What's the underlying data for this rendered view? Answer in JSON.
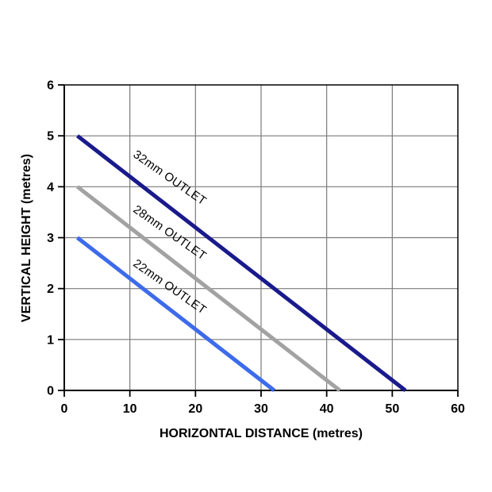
{
  "chart_data": {
    "type": "line",
    "xlabel": "HORIZONTAL DISTANCE (metres)",
    "ylabel": "VERTICAL HEIGHT (metres)",
    "xlim": [
      0,
      60
    ],
    "ylim": [
      0,
      6
    ],
    "x_major_ticks": [
      0,
      10,
      20,
      30,
      40,
      50,
      60
    ],
    "y_major_ticks": [
      0,
      1,
      2,
      3,
      4,
      5,
      6
    ],
    "grid": true,
    "legend_position": "inline-line-labels",
    "series": [
      {
        "name": "32mm OUTLET",
        "color": "#1a1a8c",
        "points": [
          [
            2,
            5
          ],
          [
            52,
            0
          ]
        ],
        "label": {
          "x": 16.1,
          "y": 4.18,
          "angle": 35
        }
      },
      {
        "name": "28mm OUTLET",
        "color": "#a2a2a2",
        "points": [
          [
            2,
            4
          ],
          [
            42,
            0
          ]
        ],
        "label": {
          "x": 16.1,
          "y": 3.1,
          "angle": 35
        }
      },
      {
        "name": "22mm OUTLET",
        "color": "#3d6bea",
        "points": [
          [
            2,
            3
          ],
          [
            32,
            0
          ]
        ],
        "label": {
          "x": 16.1,
          "y": 2.04,
          "angle": 35
        }
      }
    ],
    "style": {
      "grid_color": "#7a7a7a",
      "border_color": "#000000",
      "axis_color": "#000000",
      "tick_color": "#000000",
      "line_width": 5,
      "background": "#ffffff"
    }
  }
}
